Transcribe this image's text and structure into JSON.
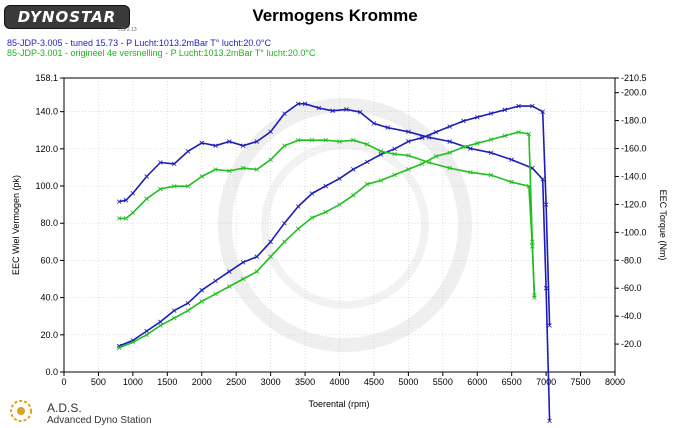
{
  "header": {
    "logo": "DYNOSTAR",
    "logo_small": "LIS 2.13",
    "title": "Vermogens Kromme"
  },
  "legend": {
    "run1": "85-JDP-3.005 - tuned 15.73  - P Lucht:1013.2mBar T° lucht:20.0°C",
    "run2": "85-JDP-3.001 - origineel 4e versnelling  - P Lucht:1013.2mBar T° lucht:20.0°C"
  },
  "footer": {
    "name": "A.D.S.",
    "subtitle": "Advanced Dyno Station"
  },
  "colors": {
    "tuned": "#1c1cb8",
    "original": "#1fbf1f",
    "grid": "#c8c8c8",
    "watermark": "#efefef"
  },
  "chart_data": {
    "type": "line",
    "xlabel": "Toerental (rpm)",
    "ylabel": "EEC Wiel Vermogen (pk)",
    "y2label": "EEC Torque (Nm)",
    "xlim": [
      0,
      8000
    ],
    "ylim": [
      0,
      158.1
    ],
    "y2lim": [
      0,
      210.5
    ],
    "x_ticks": [
      "0",
      "500",
      "1000",
      "1500",
      "2000",
      "2500",
      "3000",
      "3500",
      "4000",
      "4500",
      "5000",
      "5500",
      "6000",
      "6500",
      "7000",
      "7500",
      "8000"
    ],
    "y_ticks": [
      "0.0",
      "20.0",
      "40.0",
      "60.0",
      "80.0",
      "100.0",
      "120.0",
      "140.0",
      "158.1"
    ],
    "y_tick_values": [
      0,
      20,
      40,
      60,
      80,
      100,
      120,
      140,
      158.1
    ],
    "y2_ticks": [
      "-20.0",
      "-40.0",
      "-60.0",
      "-80.0",
      "-100.0",
      "-120.0",
      "-140.0",
      "-160.0",
      "-180.0",
      "-200.0",
      "-210.5"
    ],
    "y2_tick_values": [
      20,
      40,
      60,
      80,
      100,
      120,
      140,
      160,
      180,
      200,
      210.5
    ],
    "grid": true,
    "series": [
      {
        "name": "85-JDP-3.005 - tuned 15.73",
        "quantity": "power",
        "axis": "left",
        "x": [
          800,
          1000,
          1200,
          1400,
          1600,
          1800,
          2000,
          2200,
          2400,
          2600,
          2800,
          3000,
          3200,
          3400,
          3600,
          3800,
          4000,
          4200,
          4400,
          4600,
          4800,
          5000,
          5200,
          5400,
          5600,
          5800,
          6000,
          6200,
          6400,
          6600,
          6800,
          6950,
          7000,
          7050
        ],
        "values": [
          14,
          17,
          22,
          27,
          33,
          37,
          44,
          49,
          54,
          59,
          62,
          70,
          80,
          89,
          96,
          100,
          104,
          109,
          113,
          117,
          120,
          124,
          126,
          129,
          132,
          135,
          137,
          139,
          141,
          143,
          143,
          140,
          90,
          25
        ]
      },
      {
        "name": "85-JDP-3.005 - tuned 15.73",
        "quantity": "torque",
        "axis": "right",
        "x": [
          800,
          900,
          1000,
          1200,
          1400,
          1600,
          1800,
          2000,
          2200,
          2400,
          2600,
          2800,
          3000,
          3200,
          3400,
          3500,
          3700,
          3900,
          4100,
          4300,
          4500,
          4700,
          5000,
          5300,
          5600,
          5900,
          6200,
          6500,
          6800,
          6950,
          7000,
          7050
        ],
        "values": [
          122,
          123,
          128,
          140,
          150,
          149,
          158,
          164,
          162,
          165,
          162,
          165,
          172,
          185,
          192,
          192,
          189,
          187,
          188,
          186,
          178,
          175,
          172,
          168,
          165,
          160,
          157,
          152,
          146,
          138,
          60,
          -35
        ]
      },
      {
        "name": "85-JDP-3.001 - origineel 4e versnelling",
        "quantity": "power",
        "axis": "left",
        "x": [
          800,
          1000,
          1200,
          1400,
          1600,
          1800,
          2000,
          2200,
          2400,
          2600,
          2800,
          3000,
          3200,
          3400,
          3600,
          3800,
          4000,
          4200,
          4400,
          4600,
          4800,
          5000,
          5200,
          5400,
          5600,
          5800,
          6000,
          6200,
          6400,
          6600,
          6750,
          6800,
          6830
        ],
        "values": [
          13,
          16,
          20,
          25,
          29,
          33,
          38,
          42,
          46,
          50,
          54,
          62,
          70,
          77,
          83,
          86,
          90,
          95,
          101,
          103,
          106,
          109,
          112,
          116,
          118,
          121,
          123,
          125,
          127,
          129,
          128,
          70,
          40
        ]
      },
      {
        "name": "85-JDP-3.001 - origineel 4e versnelling",
        "quantity": "torque",
        "axis": "right",
        "x": [
          800,
          900,
          1000,
          1200,
          1400,
          1600,
          1800,
          2000,
          2200,
          2400,
          2600,
          2800,
          3000,
          3200,
          3400,
          3600,
          3800,
          4000,
          4200,
          4400,
          4600,
          4800,
          5000,
          5300,
          5600,
          5900,
          6200,
          6500,
          6750,
          6800,
          6830
        ],
        "values": [
          110,
          110,
          114,
          124,
          131,
          133,
          133,
          140,
          145,
          144,
          146,
          145,
          152,
          162,
          166,
          166,
          166,
          165,
          166,
          163,
          158,
          156,
          155,
          150,
          146,
          143,
          141,
          136,
          133,
          90,
          55
        ]
      }
    ]
  }
}
